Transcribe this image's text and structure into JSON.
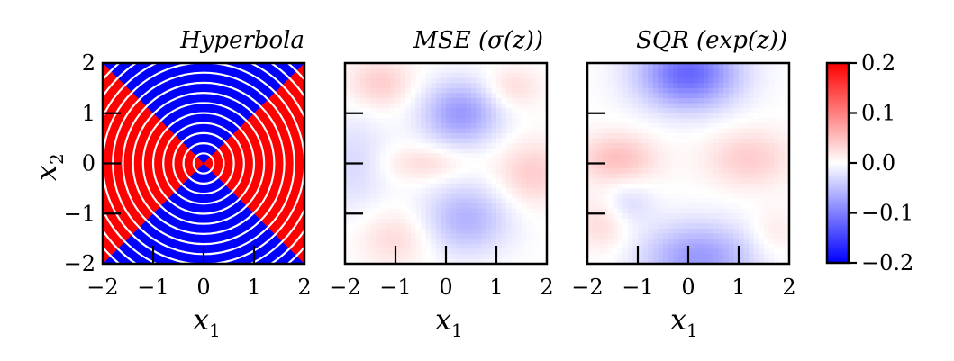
{
  "chart_data": [
    {
      "type": "heatmap",
      "title": "Hyperbola",
      "xlabel": "x",
      "xlabel_sub": "1",
      "ylabel": "x",
      "ylabel_sub": "2",
      "xlim": [
        -2,
        2
      ],
      "ylim": [
        -2,
        2
      ],
      "xticks": [
        "−2",
        "−1",
        "0",
        "1",
        "2"
      ],
      "yticks": [
        "2",
        "1",
        "0",
        "−1",
        "−2"
      ],
      "colormap": "bwr",
      "pattern": "sign of x1^2 - x2^2 (red where |x1| > |x2|, blue where |x2| > |x1|)",
      "contour_radii": [
        0.2,
        0.4,
        0.6,
        0.8,
        1.0,
        1.2,
        1.4,
        1.6,
        1.8,
        2.0,
        2.2,
        2.4,
        2.6
      ],
      "contour_center": [
        0,
        0
      ],
      "contour_color": "#ffffff"
    },
    {
      "type": "heatmap",
      "title": "MSE (σ(z))",
      "xlabel": "x",
      "xlabel_sub": "1",
      "xlim": [
        -2,
        2
      ],
      "ylim": [
        -2,
        2
      ],
      "xticks": [
        "−2",
        "−1",
        "0",
        "1",
        "2"
      ],
      "colormap": "bwr",
      "value_range": [
        -0.2,
        0.2
      ],
      "blobs": [
        {
          "x": 0.3,
          "y": 1.0,
          "sx": 0.55,
          "sy": 0.45,
          "v": -0.08
        },
        {
          "x": 0.4,
          "y": -1.1,
          "sx": 0.6,
          "sy": 0.5,
          "v": -0.06
        },
        {
          "x": -1.8,
          "y": 0.0,
          "sx": 0.45,
          "sy": 0.7,
          "v": -0.03
        },
        {
          "x": -1.3,
          "y": 1.6,
          "sx": 0.45,
          "sy": 0.35,
          "v": 0.04
        },
        {
          "x": 1.7,
          "y": -0.2,
          "sx": 0.5,
          "sy": 0.45,
          "v": 0.04
        },
        {
          "x": -0.4,
          "y": 0.0,
          "sx": 0.6,
          "sy": 0.25,
          "v": 0.03
        },
        {
          "x": -1.0,
          "y": -1.5,
          "sx": 0.5,
          "sy": 0.4,
          "v": 0.03
        },
        {
          "x": 1.3,
          "y": 1.5,
          "sx": 0.4,
          "sy": 0.3,
          "v": 0.03
        }
      ]
    },
    {
      "type": "heatmap",
      "title": "SQR (exp(z))",
      "xlabel": "x",
      "xlabel_sub": "1",
      "xlim": [
        -2,
        2
      ],
      "ylim": [
        -2,
        2
      ],
      "xticks": [
        "−2",
        "−1",
        "0",
        "1",
        "2"
      ],
      "colormap": "bwr",
      "value_range": [
        -0.2,
        0.2
      ],
      "blobs": [
        {
          "x": 0.0,
          "y": 1.8,
          "sx": 0.7,
          "sy": 0.5,
          "v": -0.12
        },
        {
          "x": 0.2,
          "y": -1.9,
          "sx": 0.8,
          "sy": 0.5,
          "v": -0.08
        },
        {
          "x": -1.4,
          "y": 0.1,
          "sx": 0.55,
          "sy": 0.35,
          "v": 0.05
        },
        {
          "x": 1.2,
          "y": 0.1,
          "sx": 0.6,
          "sy": 0.4,
          "v": 0.04
        },
        {
          "x": -1.7,
          "y": -1.2,
          "sx": 0.4,
          "sy": 0.4,
          "v": 0.03
        },
        {
          "x": 1.7,
          "y": -1.4,
          "sx": 0.35,
          "sy": 0.35,
          "v": 0.02
        },
        {
          "x": -1.2,
          "y": -0.8,
          "sx": 0.35,
          "sy": 0.3,
          "v": -0.03
        }
      ]
    }
  ],
  "colorbar": {
    "colormap": "bwr",
    "range": [
      -0.2,
      0.2
    ],
    "ticks": [
      0.2,
      0.1,
      0.0,
      -0.1,
      -0.2
    ],
    "tick_labels": [
      "0.2",
      "0.1",
      "0.0",
      "−0.1",
      "−0.2"
    ],
    "colors": {
      "low": "#0000ff",
      "mid": "#ffffff",
      "high": "#ff0000"
    }
  }
}
